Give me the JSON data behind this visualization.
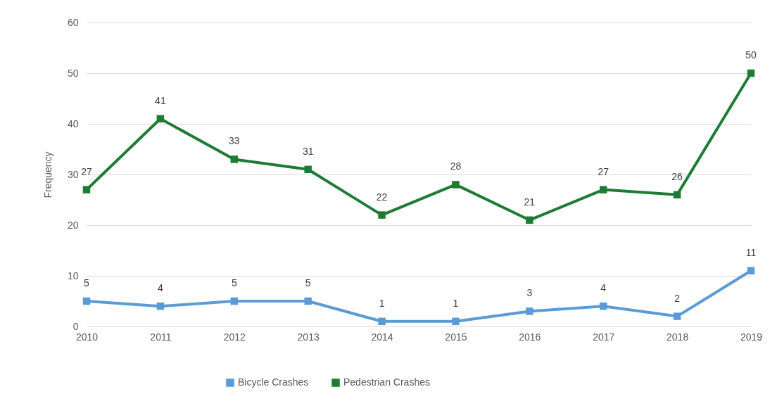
{
  "chart_data": {
    "type": "line",
    "ylabel": "Frequency",
    "categories": [
      "2010",
      "2011",
      "2012",
      "2013",
      "2014",
      "2015",
      "2016",
      "2017",
      "2018",
      "2019"
    ],
    "series": [
      {
        "name": "Bicycle Crashes",
        "color": "#5b9bd5",
        "values": [
          5,
          4,
          5,
          5,
          1,
          1,
          3,
          4,
          2,
          11
        ]
      },
      {
        "name": "Pedestrian Crashes",
        "color": "#1e7b34",
        "values": [
          27,
          41,
          33,
          31,
          22,
          28,
          21,
          27,
          26,
          50
        ]
      }
    ],
    "ylim": [
      0,
      60
    ],
    "yticks": [
      0,
      10,
      20,
      30,
      40,
      50,
      60
    ],
    "grid": "y",
    "legend": "bottom",
    "marker": "square",
    "line_style": "solid",
    "data_labels": true
  }
}
